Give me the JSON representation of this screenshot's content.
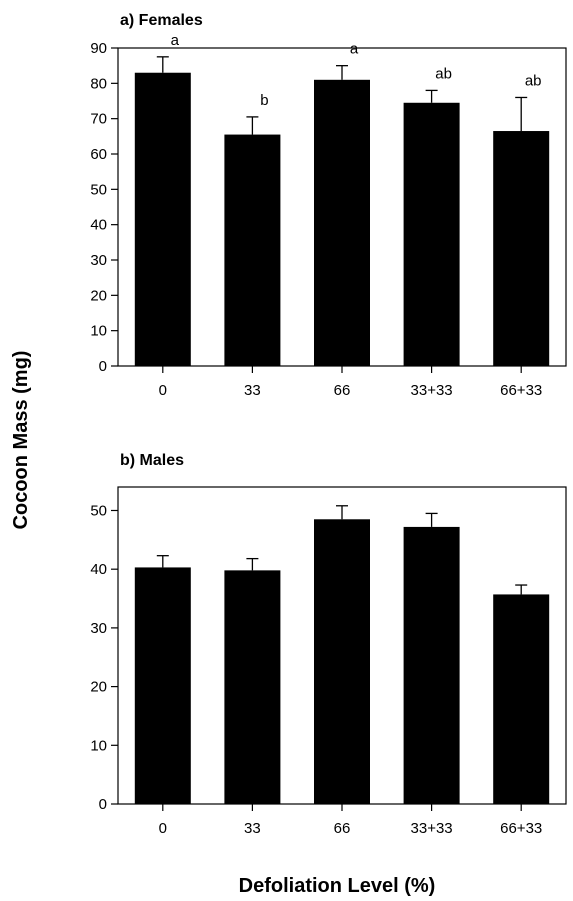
{
  "figure": {
    "ylabel": "Cocoon Mass (mg)",
    "xlabel": "Defoliation Level (%)"
  },
  "chart_data": [
    {
      "type": "bar",
      "title": "a) Females",
      "categories": [
        "0",
        "33",
        "66",
        "33+33",
        "66+33"
      ],
      "values": [
        83,
        65.5,
        81,
        74.5,
        66.5
      ],
      "errors": [
        4.5,
        5,
        4,
        3.5,
        9.5
      ],
      "annotations": [
        "a",
        "b",
        "a",
        "ab",
        "ab"
      ],
      "ylim": [
        0,
        90
      ],
      "yticks": [
        0,
        10,
        20,
        30,
        40,
        50,
        60,
        70,
        80,
        90
      ],
      "bar_color": "#000000"
    },
    {
      "type": "bar",
      "title": "b) Males",
      "categories": [
        "0",
        "33",
        "66",
        "33+33",
        "66+33"
      ],
      "values": [
        40.3,
        39.8,
        48.5,
        47.2,
        35.7
      ],
      "errors": [
        2,
        2,
        2.3,
        2.3,
        1.6
      ],
      "annotations": [],
      "ylim": [
        0,
        54
      ],
      "yticks": [
        0,
        10,
        20,
        30,
        40,
        50
      ],
      "bar_color": "#000000"
    }
  ]
}
